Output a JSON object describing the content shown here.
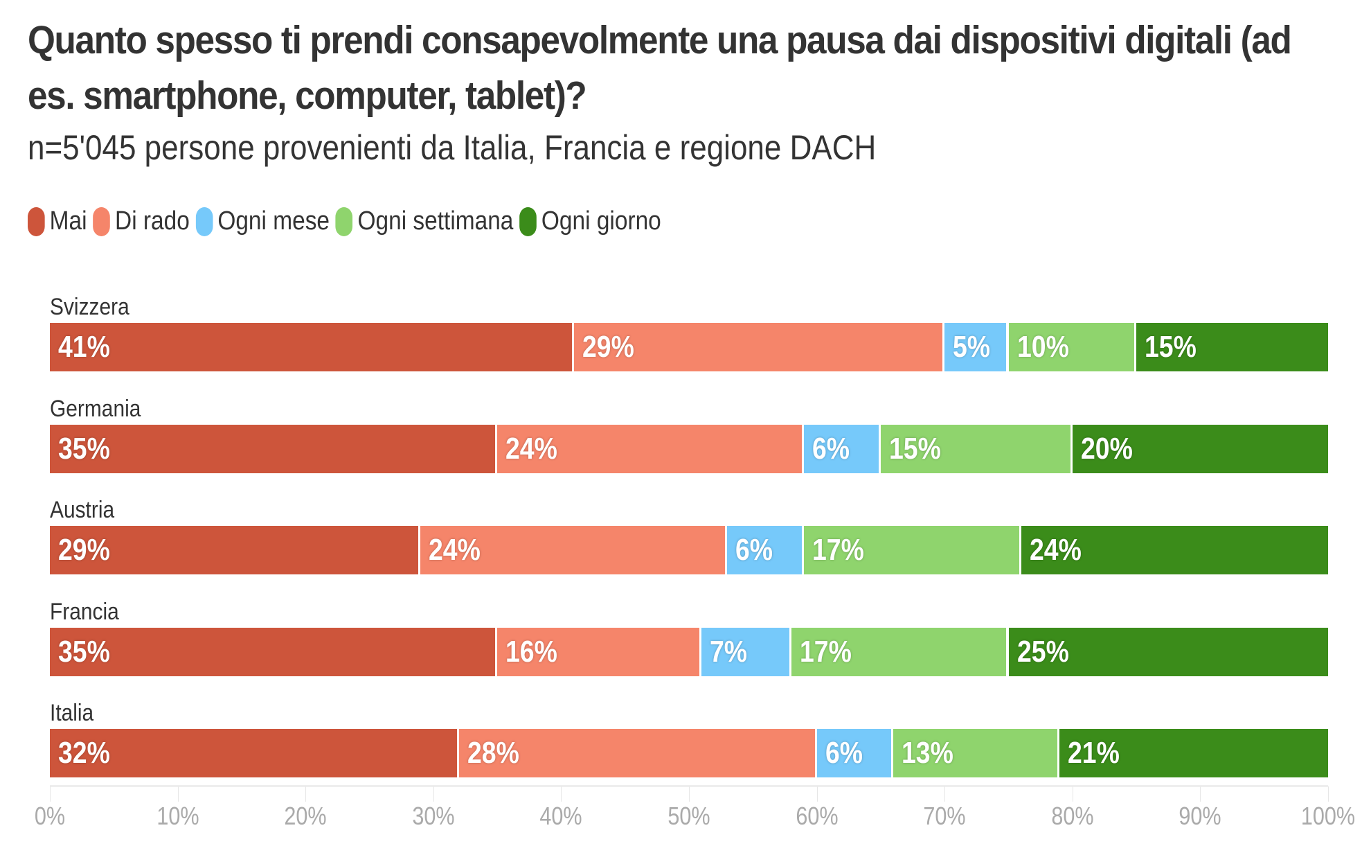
{
  "chart_data": {
    "type": "bar",
    "orientation": "horizontal",
    "stacked": true,
    "title": "Quanto spesso ti prendi consapevolmente una pausa dai dispositivi digitali (ad es. smartphone, computer, tablet)?",
    "subtitle": "n=5'045 persone provenienti da Italia, Francia e regione DACH",
    "categories": [
      "Svizzera",
      "Germania",
      "Austria",
      "Francia",
      "Italia"
    ],
    "series": [
      {
        "name": "Mai",
        "color": "#cd553b",
        "values": [
          41,
          35,
          29,
          35,
          32
        ]
      },
      {
        "name": "Di rado",
        "color": "#f5856a",
        "values": [
          29,
          24,
          24,
          16,
          28
        ]
      },
      {
        "name": "Ogni mese",
        "color": "#76c9fa",
        "values": [
          5,
          6,
          6,
          7,
          6
        ]
      },
      {
        "name": "Ogni settimana",
        "color": "#8fd46d",
        "values": [
          10,
          15,
          17,
          17,
          13
        ]
      },
      {
        "name": "Ogni giorno",
        "color": "#3b8c1a",
        "values": [
          15,
          20,
          24,
          25,
          21
        ]
      }
    ],
    "xlim": [
      0,
      100
    ],
    "xticks": [
      "0%",
      "10%",
      "20%",
      "30%",
      "40%",
      "50%",
      "60%",
      "70%",
      "80%",
      "90%",
      "100%"
    ],
    "legend_position": "top-left",
    "grid": false
  }
}
